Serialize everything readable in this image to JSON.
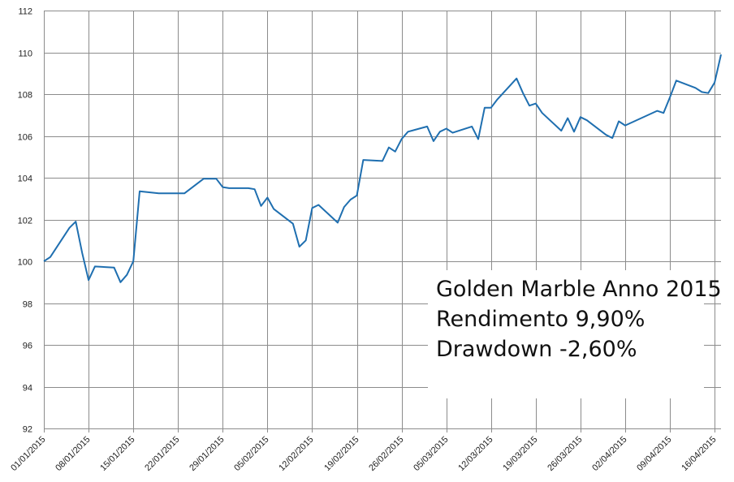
{
  "chart_data": {
    "type": "line",
    "title": "",
    "xlabel": "",
    "ylabel": "",
    "ylim": [
      92,
      112
    ],
    "yticks": [
      92,
      94,
      96,
      98,
      100,
      102,
      104,
      106,
      108,
      110,
      112
    ],
    "xlim": [
      "2015-01-01",
      "2015-04-17"
    ],
    "xticks": [
      "01/01/2015",
      "08/01/2015",
      "15/01/2015",
      "22/01/2015",
      "29/01/2015",
      "05/02/2015",
      "12/02/2015",
      "19/02/2015",
      "26/02/2015",
      "05/03/2015",
      "12/03/2015",
      "19/03/2015",
      "26/03/2015",
      "02/04/2015",
      "09/04/2015",
      "16/04/2015"
    ],
    "grid": true,
    "series": [
      {
        "color": "#1f6fb0",
        "points": [
          [
            "2015-01-01",
            100.0
          ],
          [
            "2015-01-02",
            100.2
          ],
          [
            "2015-01-05",
            101.6
          ],
          [
            "2015-01-06",
            101.9
          ],
          [
            "2015-01-07",
            100.4
          ],
          [
            "2015-01-08",
            99.1
          ],
          [
            "2015-01-09",
            99.75
          ],
          [
            "2015-01-12",
            99.7
          ],
          [
            "2015-01-13",
            99.0
          ],
          [
            "2015-01-14",
            99.35
          ],
          [
            "2015-01-15",
            100.0
          ],
          [
            "2015-01-16",
            103.35
          ],
          [
            "2015-01-19",
            103.25
          ],
          [
            "2015-01-20",
            103.25
          ],
          [
            "2015-01-21",
            103.25
          ],
          [
            "2015-01-22",
            103.25
          ],
          [
            "2015-01-23",
            103.25
          ],
          [
            "2015-01-26",
            103.95
          ],
          [
            "2015-01-27",
            103.95
          ],
          [
            "2015-01-28",
            103.95
          ],
          [
            "2015-01-29",
            103.55
          ],
          [
            "2015-01-30",
            103.5
          ],
          [
            "2015-02-02",
            103.5
          ],
          [
            "2015-02-03",
            103.45
          ],
          [
            "2015-02-04",
            102.65
          ],
          [
            "2015-02-05",
            103.05
          ],
          [
            "2015-02-06",
            102.5
          ],
          [
            "2015-02-09",
            101.8
          ],
          [
            "2015-02-10",
            100.7
          ],
          [
            "2015-02-11",
            101.0
          ],
          [
            "2015-02-12",
            102.55
          ],
          [
            "2015-02-13",
            102.7
          ],
          [
            "2015-02-16",
            101.85
          ],
          [
            "2015-02-17",
            102.6
          ],
          [
            "2015-02-18",
            102.95
          ],
          [
            "2015-02-19",
            103.15
          ],
          [
            "2015-02-20",
            104.85
          ],
          [
            "2015-02-23",
            104.8
          ],
          [
            "2015-02-24",
            105.45
          ],
          [
            "2015-02-25",
            105.25
          ],
          [
            "2015-02-26",
            105.85
          ],
          [
            "2015-02-27",
            106.2
          ],
          [
            "2015-03-02",
            106.45
          ],
          [
            "2015-03-03",
            105.75
          ],
          [
            "2015-03-04",
            106.2
          ],
          [
            "2015-03-05",
            106.35
          ],
          [
            "2015-03-06",
            106.15
          ],
          [
            "2015-03-09",
            106.45
          ],
          [
            "2015-03-10",
            105.85
          ],
          [
            "2015-03-11",
            107.35
          ],
          [
            "2015-03-12",
            107.35
          ],
          [
            "2015-03-13",
            107.75
          ],
          [
            "2015-03-16",
            108.75
          ],
          [
            "2015-03-17",
            108.05
          ],
          [
            "2015-03-18",
            107.45
          ],
          [
            "2015-03-19",
            107.55
          ],
          [
            "2015-03-20",
            107.1
          ],
          [
            "2015-03-23",
            106.25
          ],
          [
            "2015-03-24",
            106.85
          ],
          [
            "2015-03-25",
            106.2
          ],
          [
            "2015-03-26",
            106.9
          ],
          [
            "2015-03-27",
            106.75
          ],
          [
            "2015-03-30",
            106.05
          ],
          [
            "2015-03-31",
            105.9
          ],
          [
            "2015-04-01",
            106.7
          ],
          [
            "2015-04-02",
            106.5
          ],
          [
            "2015-04-07",
            107.2
          ],
          [
            "2015-04-08",
            107.1
          ],
          [
            "2015-04-09",
            107.85
          ],
          [
            "2015-04-10",
            108.65
          ],
          [
            "2015-04-13",
            108.3
          ],
          [
            "2015-04-14",
            108.1
          ],
          [
            "2015-04-15",
            108.05
          ],
          [
            "2015-04-16",
            108.55
          ],
          [
            "2015-04-17",
            109.9
          ]
        ]
      }
    ]
  },
  "info": {
    "line1": "Golden Marble Anno 2015",
    "line2": "Rendimento 9,90%",
    "line3": "Drawdown -2,60%"
  }
}
